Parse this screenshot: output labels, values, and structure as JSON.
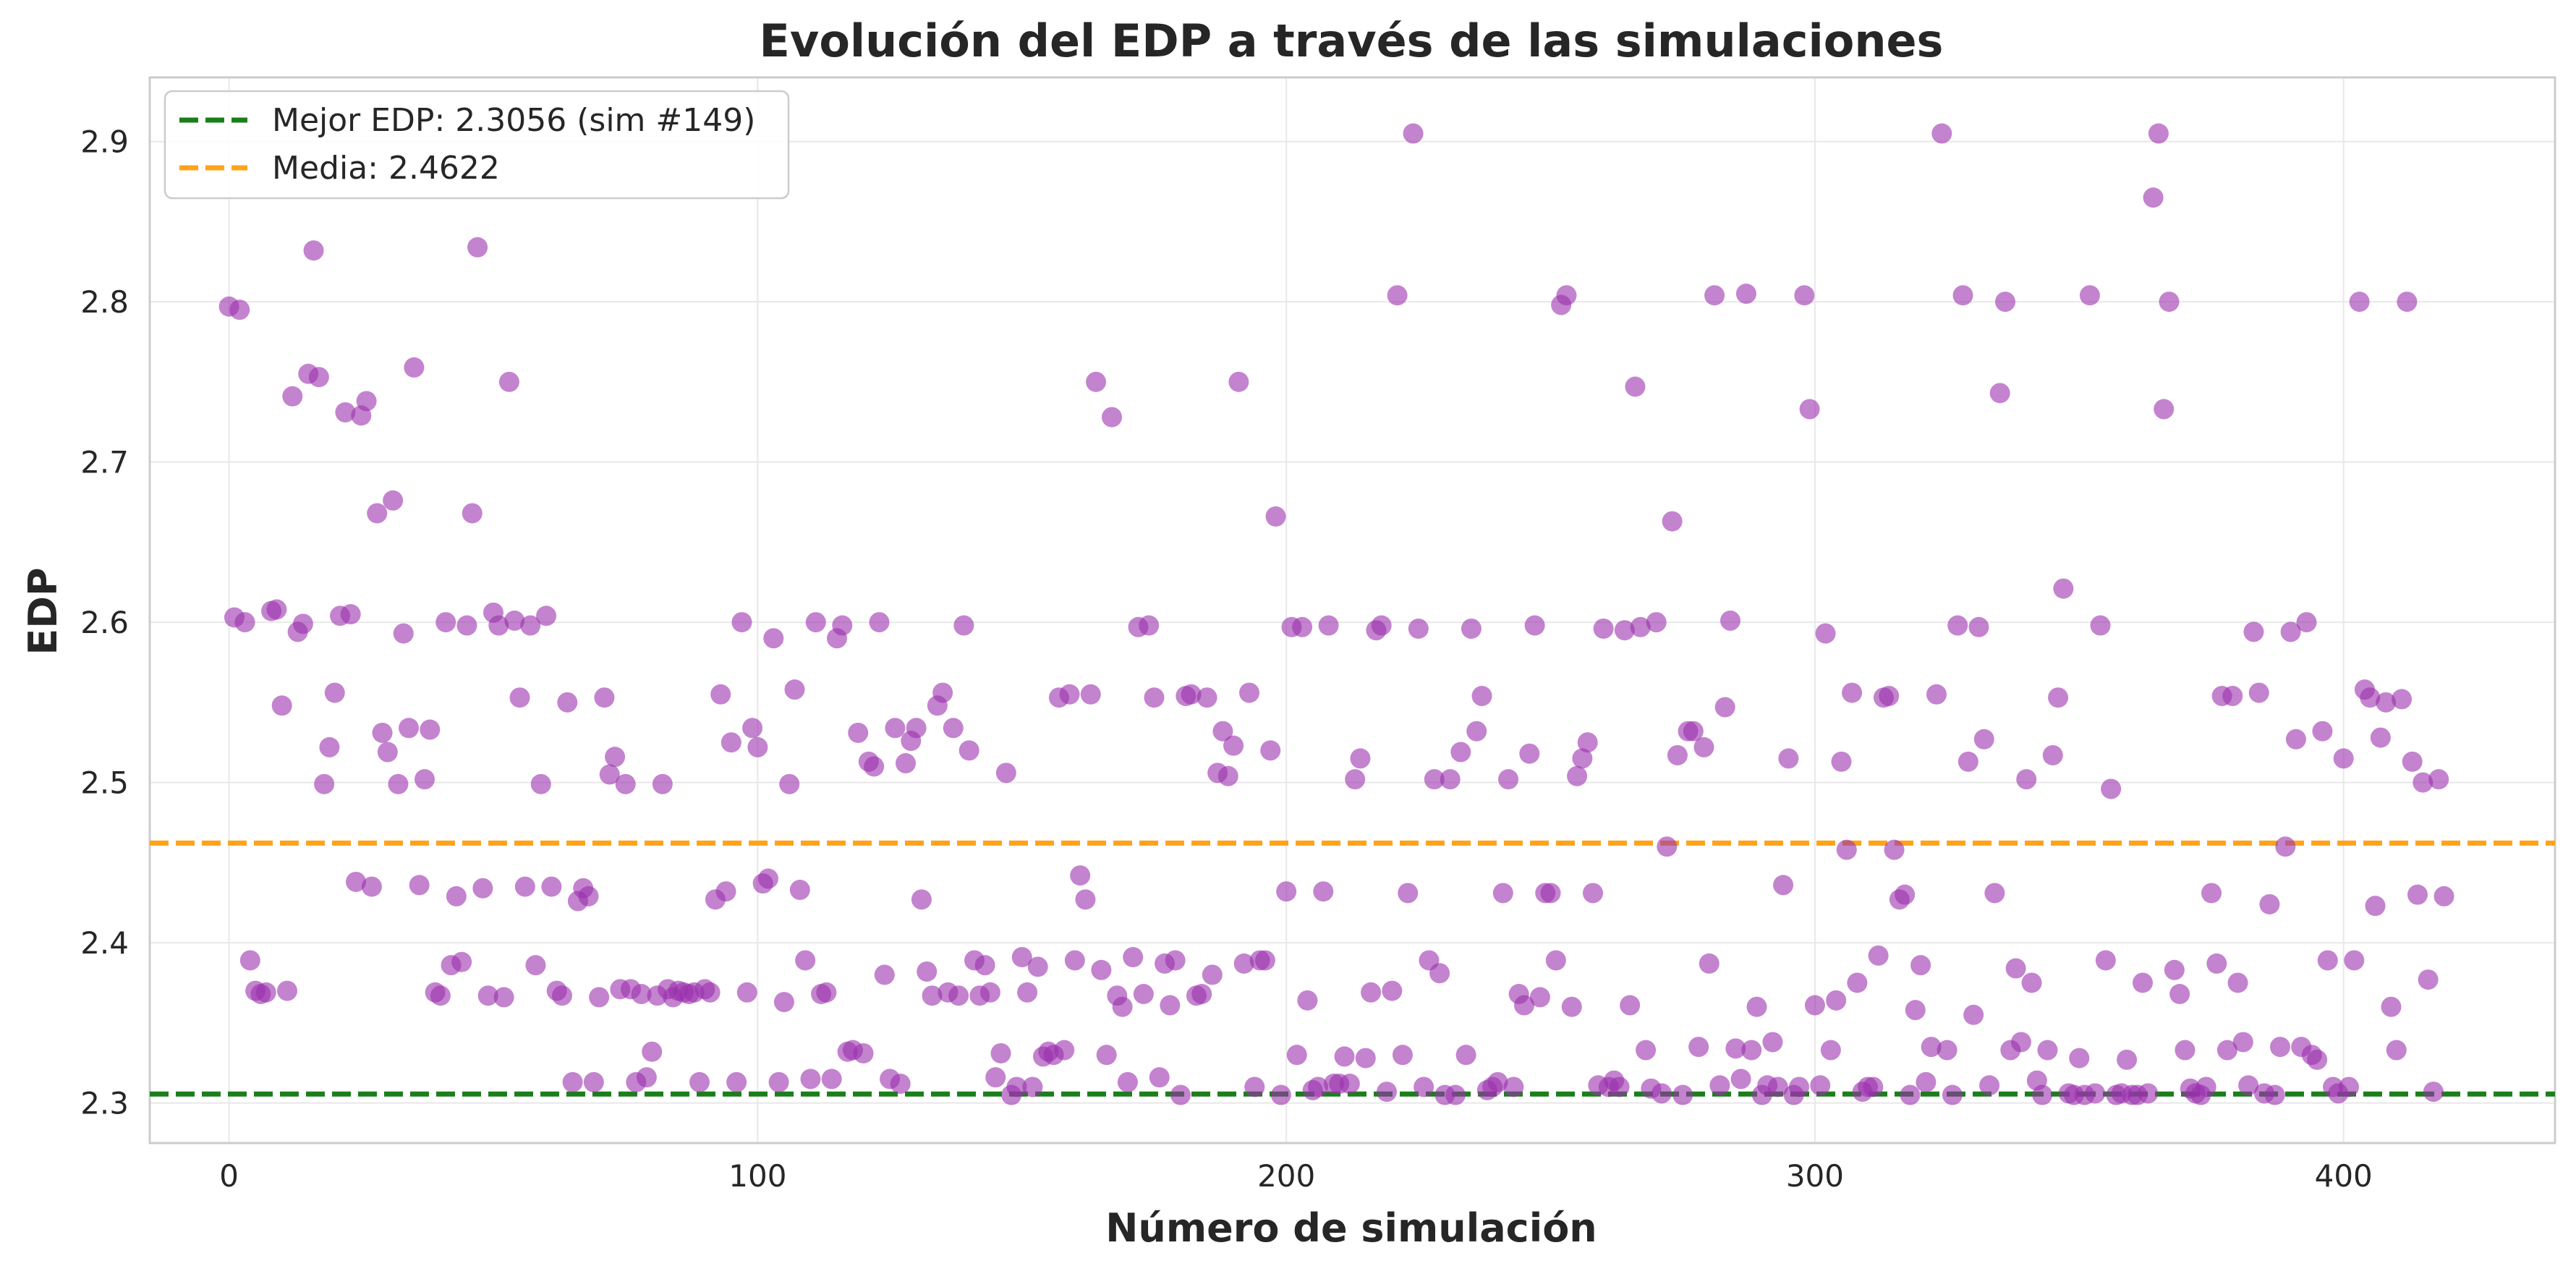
{
  "chart_data": {
    "type": "scatter",
    "title": "Evolución del EDP a través de las simulaciones",
    "xlabel": "Número de simulación",
    "ylabel": "EDP",
    "xlim": [
      -15,
      440
    ],
    "ylim": [
      2.275,
      2.94
    ],
    "xticks": [
      0,
      100,
      200,
      300,
      400
    ],
    "yticks": [
      2.3,
      2.4,
      2.5,
      2.6,
      2.7,
      2.8,
      2.9
    ],
    "grid": true,
    "legend_position": "top-left",
    "colors": {
      "points": "#9b30ae",
      "best": "#1a7f1a",
      "mean": "#ffa31a"
    },
    "reference_lines": [
      {
        "label": "Mejor EDP: 2.3056 (sim #149)",
        "value": 2.3056,
        "color": "#1a7f1a"
      },
      {
        "label": "Media: 2.4622",
        "value": 2.4622,
        "color": "#ffa31a"
      }
    ],
    "series": [
      {
        "x": [
          0,
          1,
          2,
          3,
          4,
          5,
          6,
          7,
          8,
          9,
          10,
          11,
          12,
          13,
          14,
          15,
          16,
          17,
          18,
          19,
          20,
          21,
          22,
          23,
          24,
          25,
          26,
          27,
          28,
          29,
          30,
          31,
          32,
          33,
          34,
          35,
          36,
          37,
          38,
          39,
          40,
          41,
          42,
          43,
          44,
          45,
          46,
          47,
          48,
          49,
          50,
          51,
          52,
          53,
          54,
          55,
          56,
          57,
          58,
          59,
          60,
          61,
          62,
          63,
          64,
          65,
          66,
          67,
          68,
          69,
          70,
          71,
          72,
          73,
          74,
          75,
          76,
          77,
          78,
          79,
          80,
          81,
          82,
          83,
          84,
          85,
          86,
          87,
          88,
          89,
          90,
          91,
          92,
          93,
          94,
          95,
          96,
          97,
          98,
          99,
          100,
          101,
          102,
          103,
          104,
          105,
          106,
          107,
          108,
          109,
          110,
          111,
          112,
          113,
          114,
          115,
          116,
          117,
          118,
          119,
          120,
          121,
          122,
          123,
          124,
          125,
          126,
          127,
          128,
          129,
          130,
          131,
          132,
          133,
          134,
          135,
          136,
          137,
          138,
          139,
          140,
          141,
          142,
          143,
          144,
          145,
          146,
          147,
          148,
          149,
          150,
          151,
          152,
          153,
          154,
          155,
          156,
          157,
          158,
          159,
          160,
          161,
          162,
          163,
          164,
          165,
          166,
          167,
          168,
          169,
          170,
          171,
          172,
          173,
          174,
          175,
          176,
          177,
          178,
          179,
          180,
          181,
          182,
          183,
          184,
          185,
          186,
          187,
          188,
          189,
          190,
          191,
          192,
          193,
          194,
          195,
          196,
          197,
          198,
          199,
          200,
          201,
          202,
          203,
          204,
          205,
          206,
          207,
          208,
          209,
          210,
          211,
          212,
          213,
          214,
          215,
          216,
          217,
          218,
          219,
          220,
          221,
          222,
          223,
          224,
          225,
          226,
          227,
          228,
          229,
          230,
          231,
          232,
          233,
          234,
          235,
          236,
          237,
          238,
          239,
          240,
          241,
          242,
          243,
          244,
          245,
          246,
          247,
          248,
          249,
          250,
          251,
          252,
          253,
          254,
          255,
          256,
          257,
          258,
          259,
          260,
          261,
          262,
          263,
          264,
          265,
          266,
          267,
          268,
          269,
          270,
          271,
          272,
          273,
          274,
          275,
          276,
          277,
          278,
          279,
          280,
          281,
          282,
          283,
          284,
          285,
          286,
          287,
          288,
          289,
          290,
          291,
          292,
          293,
          294,
          295,
          296,
          297,
          298,
          299,
          300,
          301,
          302,
          303,
          304,
          305,
          306,
          307,
          308,
          309,
          310,
          311,
          312,
          313,
          314,
          315,
          316,
          317,
          318,
          319,
          320,
          321,
          322,
          323,
          324,
          325,
          326,
          327,
          328,
          329,
          330,
          331,
          332,
          333,
          334,
          335,
          336,
          337,
          338,
          339,
          340,
          341,
          342,
          343,
          344,
          345,
          346,
          347,
          348,
          349,
          350,
          351,
          352,
          353,
          354,
          355,
          356,
          357,
          358,
          359,
          360,
          361,
          362,
          363,
          364,
          365,
          366,
          367,
          368,
          369,
          370,
          371,
          372,
          373,
          374,
          375,
          376,
          377,
          378,
          379,
          380,
          381,
          382,
          383,
          384,
          385,
          386,
          387,
          388,
          389,
          390,
          391,
          392,
          393,
          394,
          395,
          396,
          397,
          398,
          399,
          400,
          401,
          402,
          403,
          404,
          405,
          406,
          407,
          408,
          409,
          410,
          411,
          412,
          413,
          414,
          415,
          416,
          417,
          418,
          419
        ],
        "y": [
          2.797,
          2.603,
          2.795,
          2.6,
          2.389,
          2.37,
          2.368,
          2.369,
          2.607,
          2.608,
          2.548,
          2.37,
          2.741,
          2.594,
          2.599,
          2.755,
          2.832,
          2.753,
          2.499,
          2.522,
          2.556,
          2.604,
          2.731,
          2.605,
          2.438,
          2.729,
          2.738,
          2.435,
          2.668,
          2.531,
          2.519,
          2.676,
          2.499,
          2.593,
          2.534,
          2.759,
          2.436,
          2.502,
          2.533,
          2.369,
          2.367,
          2.6,
          2.386,
          2.429,
          2.388,
          2.598,
          2.668,
          2.834,
          2.434,
          2.367,
          2.606,
          2.598,
          2.366,
          2.75,
          2.601,
          2.553,
          2.435,
          2.598,
          2.386,
          2.499,
          2.604,
          2.435,
          2.37,
          2.367,
          2.55,
          2.313,
          2.426,
          2.434,
          2.429,
          2.313,
          2.366,
          2.553,
          2.505,
          2.516,
          2.371,
          2.499,
          2.371,
          2.313,
          2.368,
          2.316,
          2.332,
          2.367,
          2.499,
          2.371,
          2.366,
          2.37,
          2.369,
          2.368,
          2.369,
          2.313,
          2.371,
          2.369,
          2.427,
          2.555,
          2.432,
          2.525,
          2.313,
          2.6,
          2.369,
          2.534,
          2.522,
          2.437,
          2.44,
          2.59,
          2.313,
          2.363,
          2.499,
          2.558,
          2.433,
          2.389,
          2.315,
          2.6,
          2.368,
          2.369,
          2.315,
          2.59,
          2.598,
          2.332,
          2.333,
          2.531,
          2.331,
          2.513,
          2.51,
          2.6,
          2.38,
          2.315,
          2.534,
          2.312,
          2.512,
          2.526,
          2.534,
          2.427,
          2.382,
          2.367,
          2.548,
          2.556,
          2.369,
          2.534,
          2.367,
          2.598,
          2.52,
          2.389,
          2.367,
          2.386,
          2.369,
          2.316,
          2.331,
          2.506,
          2.305,
          2.31,
          2.391,
          2.369,
          2.31,
          2.385,
          2.329,
          2.332,
          2.33,
          2.553,
          2.333,
          2.555,
          2.389,
          2.442,
          2.427,
          2.555,
          2.75,
          2.383,
          2.33,
          2.728,
          2.367,
          2.36,
          2.313,
          2.391,
          2.597,
          2.368,
          2.598,
          2.553,
          2.316,
          2.387,
          2.361,
          2.389,
          2.305,
          2.554,
          2.555,
          2.367,
          2.368,
          2.553,
          2.38,
          2.506,
          2.532,
          2.504,
          2.523,
          2.75,
          2.387,
          2.556,
          2.31,
          2.389,
          2.389,
          2.52,
          2.666,
          2.305,
          2.432,
          2.597,
          2.33,
          2.597,
          2.364,
          2.308,
          2.31,
          2.432,
          2.598,
          2.312,
          2.312,
          2.329,
          2.312,
          2.502,
          2.515,
          2.328,
          2.369,
          2.595,
          2.598,
          2.307,
          2.37,
          2.804,
          2.33,
          2.431,
          2.905,
          2.596,
          2.31,
          2.389,
          2.502,
          2.381,
          2.305,
          2.502,
          2.305,
          2.519,
          2.33,
          2.596,
          2.532,
          2.554,
          2.308,
          2.31,
          2.313,
          2.431,
          2.502,
          2.31,
          2.368,
          2.361,
          2.518,
          2.598,
          2.366,
          2.431,
          2.431,
          2.389,
          2.798,
          2.804,
          2.36,
          2.504,
          2.515,
          2.525,
          2.431,
          2.311,
          2.596,
          2.31,
          2.314,
          2.31,
          2.595,
          2.361,
          2.747,
          2.597,
          2.333,
          2.309,
          2.6,
          2.306,
          2.46,
          2.663,
          2.517,
          2.305,
          2.532,
          2.532,
          2.335,
          2.522,
          2.387,
          2.804,
          2.311,
          2.547,
          2.601,
          2.334,
          2.315,
          2.805,
          2.333,
          2.36,
          2.305,
          2.311,
          2.338,
          2.31,
          2.436,
          2.515,
          2.305,
          2.31,
          2.804,
          2.733,
          2.361,
          2.311,
          2.593,
          2.333,
          2.364,
          2.513,
          2.458,
          2.556,
          2.375,
          2.307,
          2.31,
          2.31,
          2.392,
          2.553,
          2.554,
          2.458,
          2.427,
          2.43,
          2.305,
          2.358,
          2.386,
          2.313,
          2.335,
          2.555,
          2.905,
          2.333,
          2.305,
          2.598,
          2.804,
          2.513,
          2.355,
          2.597,
          2.527,
          2.311,
          2.431,
          2.743,
          2.8,
          2.333,
          2.384,
          2.338,
          2.502,
          2.375,
          2.314,
          2.305,
          2.333,
          2.517,
          2.553,
          2.621,
          2.306,
          2.305,
          2.328,
          2.305,
          2.804,
          2.306,
          2.598,
          2.389,
          2.496,
          2.305,
          2.306,
          2.327,
          2.305,
          2.305,
          2.375,
          2.306,
          2.865,
          2.905,
          2.733,
          2.8,
          2.383,
          2.368,
          2.333,
          2.309,
          2.306,
          2.305,
          2.31,
          2.431,
          2.387,
          2.554,
          2.333,
          2.554,
          2.375,
          2.338,
          2.311,
          2.594,
          2.556,
          2.306,
          2.424,
          2.305,
          2.335,
          2.46,
          2.594,
          2.527,
          2.335,
          2.6,
          2.33,
          2.327,
          2.532,
          2.389,
          2.31,
          2.306,
          2.515,
          2.31,
          2.389,
          2.8,
          2.558,
          2.553,
          2.423,
          2.528,
          2.55,
          2.36,
          2.333,
          2.552,
          2.8,
          2.513,
          2.43,
          2.5,
          2.377,
          2.307,
          2.502,
          2.429
        ]
      }
    ]
  }
}
